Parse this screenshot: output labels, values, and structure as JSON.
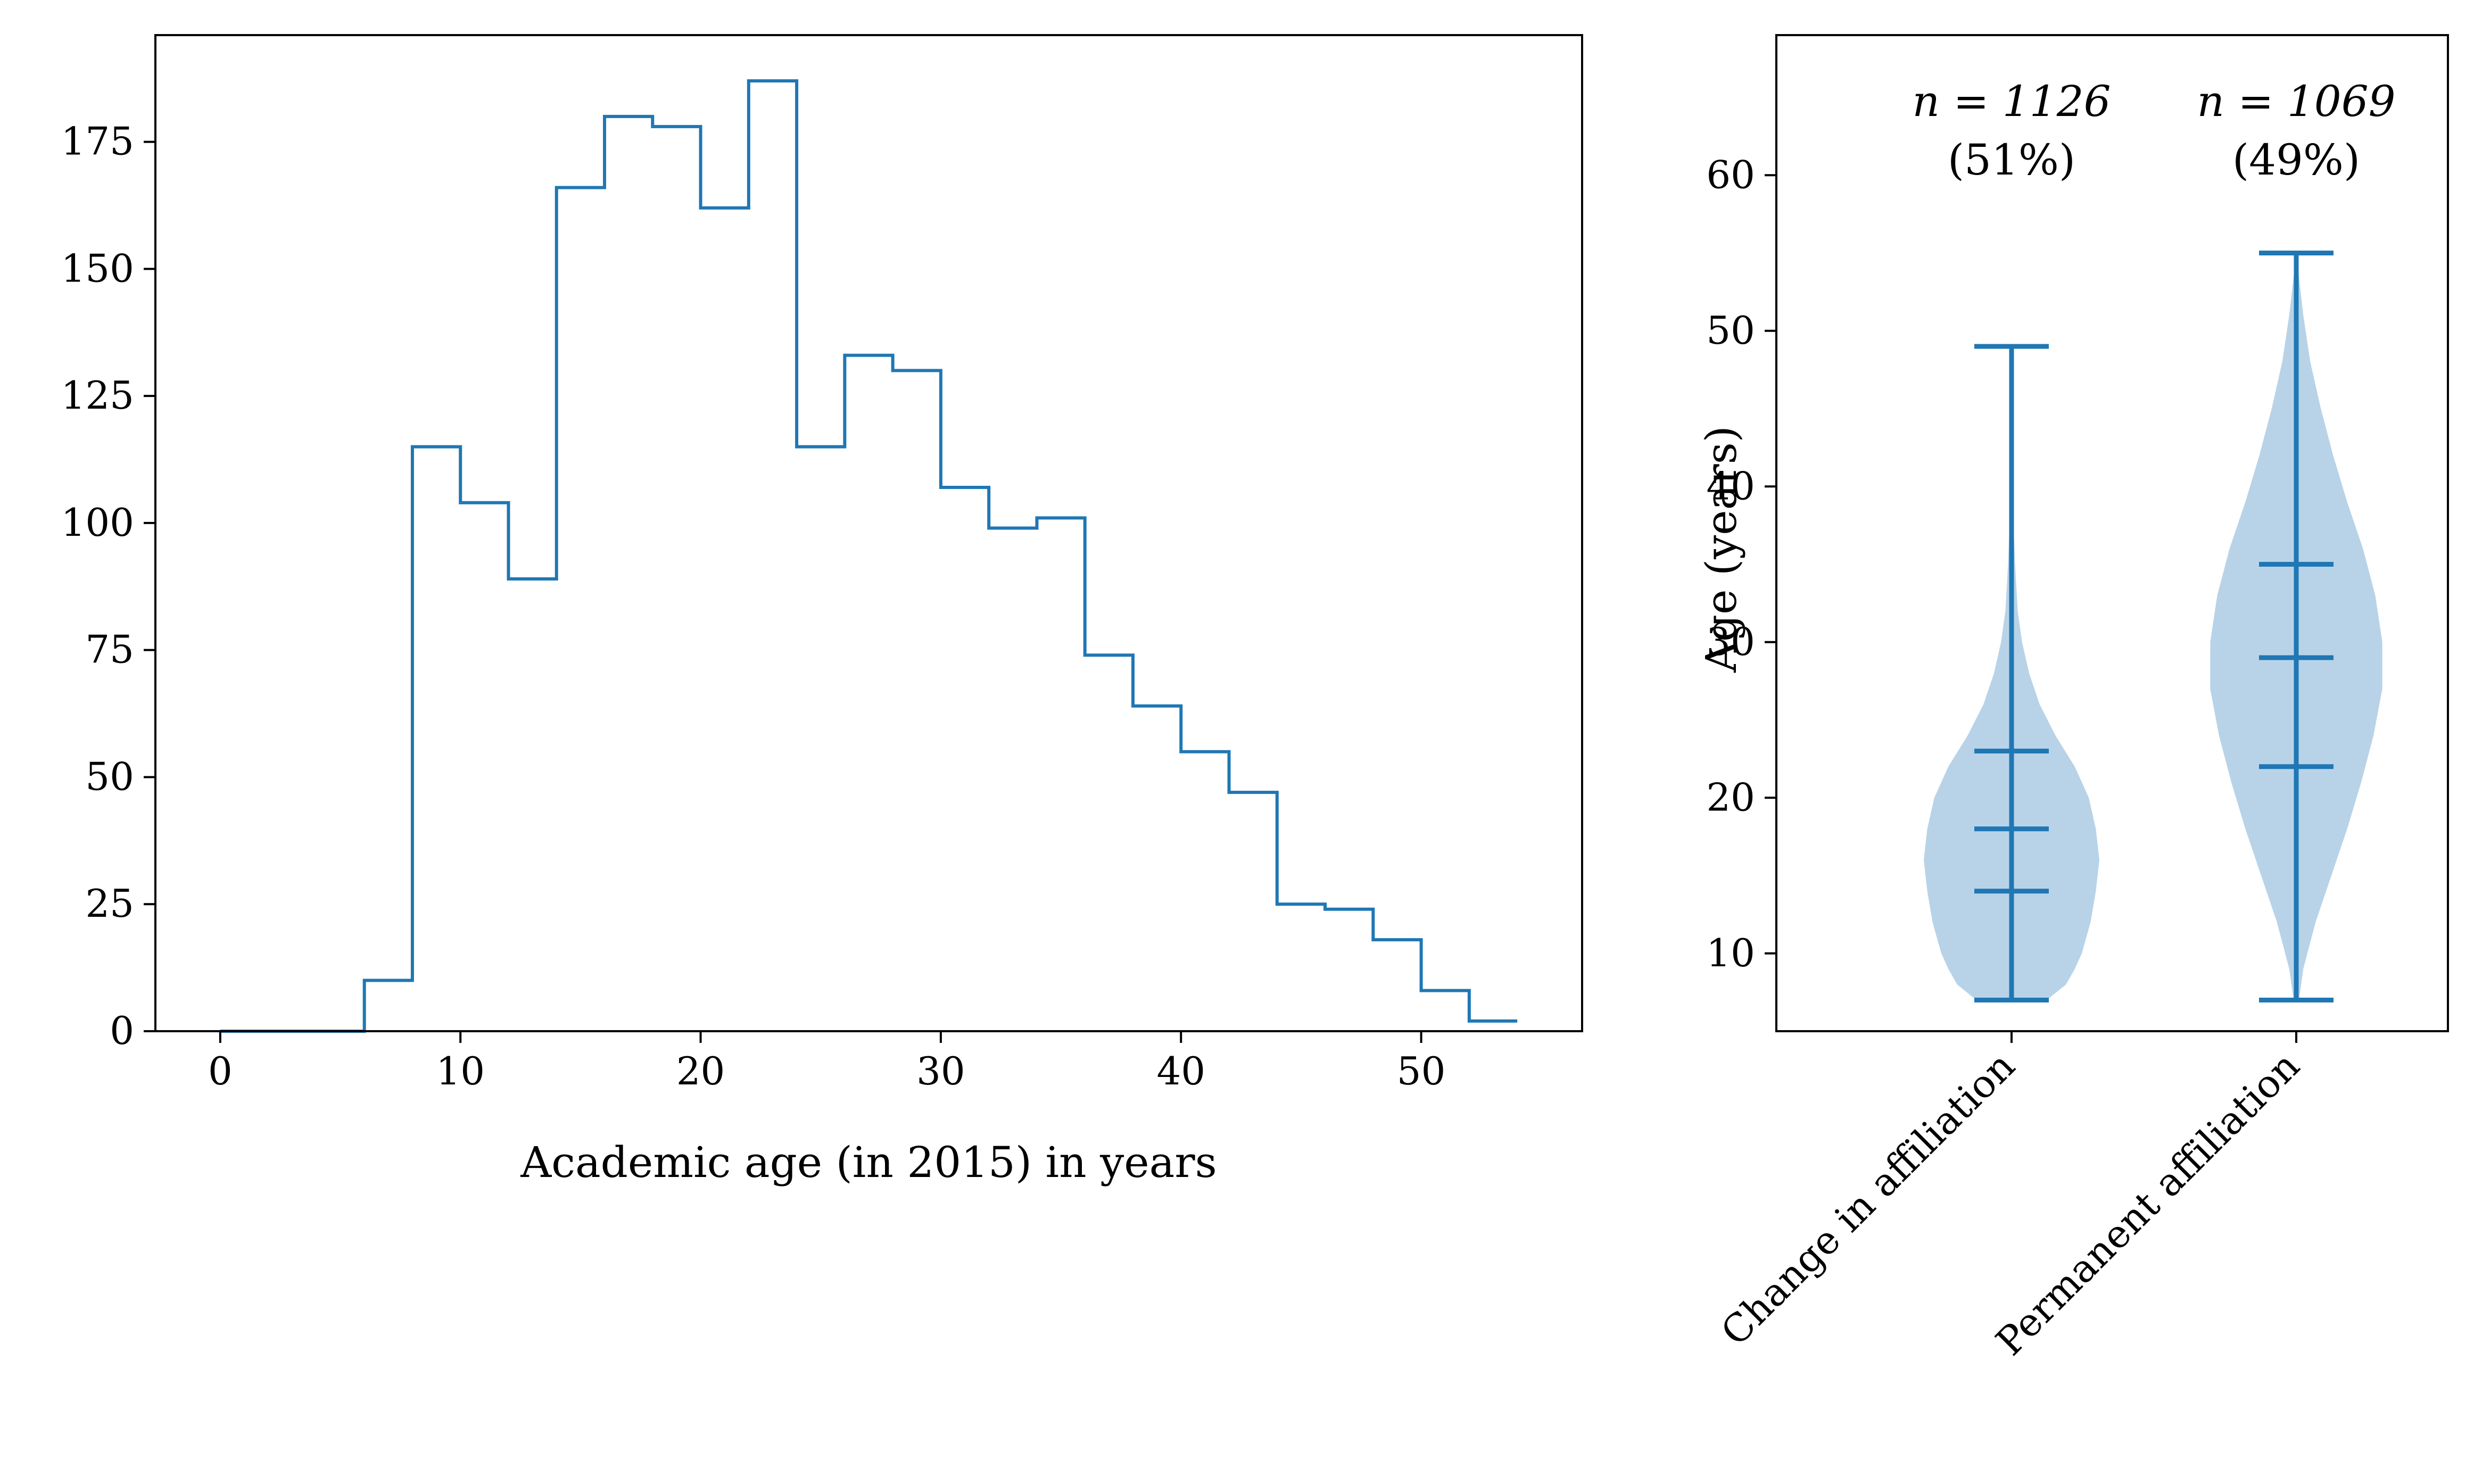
{
  "chart_data": [
    {
      "type": "histogram",
      "xlabel": "Academic age (in 2015) in years",
      "ylabel": "",
      "xlim": [
        -2.7,
        56.7
      ],
      "ylim": [
        0,
        196
      ],
      "xticks": [
        "0",
        "10",
        "20",
        "30",
        "40",
        "50"
      ],
      "yticks": [
        "0",
        "25",
        "50",
        "75",
        "100",
        "125",
        "150",
        "175"
      ],
      "color": "#1f77b4",
      "bin_edges": [
        0,
        2,
        4,
        6,
        8,
        10,
        12,
        14,
        16,
        18,
        20,
        22,
        24,
        26,
        28,
        30,
        32,
        34,
        36,
        38,
        40,
        42,
        44,
        46,
        48,
        50,
        52,
        54
      ],
      "counts": [
        0,
        0,
        0,
        10,
        115,
        104,
        89,
        166,
        180,
        178,
        162,
        187,
        115,
        133,
        130,
        107,
        99,
        101,
        74,
        64,
        55,
        47,
        25,
        24,
        18,
        8,
        2
      ]
    },
    {
      "type": "violin",
      "ylabel": "Age (years)",
      "ylim": [
        5,
        69
      ],
      "yticks": [
        "10",
        "20",
        "30",
        "40",
        "50",
        "60"
      ],
      "color": "#1f77b4",
      "fill_color": "#b8d3e8",
      "categories": [
        "Change in affiliation",
        "Permanent affiliation"
      ],
      "series": [
        {
          "name": "Change in affiliation",
          "annotation_n": "n = 1126",
          "annotation_pct": "(51%)",
          "min": 7,
          "q1": 14,
          "median": 18,
          "q3": 23,
          "max": 49,
          "density": [
            [
              7,
              0.4
            ],
            [
              8,
              0.62
            ],
            [
              9,
              0.72
            ],
            [
              10,
              0.8
            ],
            [
              12,
              0.9
            ],
            [
              14,
              0.96
            ],
            [
              16,
              1.0
            ],
            [
              18,
              0.96
            ],
            [
              20,
              0.88
            ],
            [
              22,
              0.72
            ],
            [
              24,
              0.5
            ],
            [
              26,
              0.32
            ],
            [
              28,
              0.2
            ],
            [
              30,
              0.12
            ],
            [
              32,
              0.07
            ],
            [
              35,
              0.04
            ],
            [
              38,
              0.02
            ],
            [
              42,
              0.005
            ],
            [
              49,
              0
            ]
          ]
        },
        {
          "name": "Permanent affiliation",
          "annotation_n": "n = 1069",
          "annotation_pct": "(49%)",
          "min": 7,
          "q1": 22,
          "median": 29,
          "q3": 35,
          "max": 55,
          "density": [
            [
              7,
              0.03
            ],
            [
              9,
              0.08
            ],
            [
              12,
              0.22
            ],
            [
              15,
              0.4
            ],
            [
              18,
              0.58
            ],
            [
              21,
              0.74
            ],
            [
              24,
              0.88
            ],
            [
              27,
              0.98
            ],
            [
              30,
              0.98
            ],
            [
              33,
              0.9
            ],
            [
              36,
              0.76
            ],
            [
              39,
              0.58
            ],
            [
              42,
              0.42
            ],
            [
              45,
              0.28
            ],
            [
              48,
              0.16
            ],
            [
              51,
              0.08
            ],
            [
              54,
              0.02
            ],
            [
              55,
              0
            ]
          ]
        }
      ]
    }
  ]
}
